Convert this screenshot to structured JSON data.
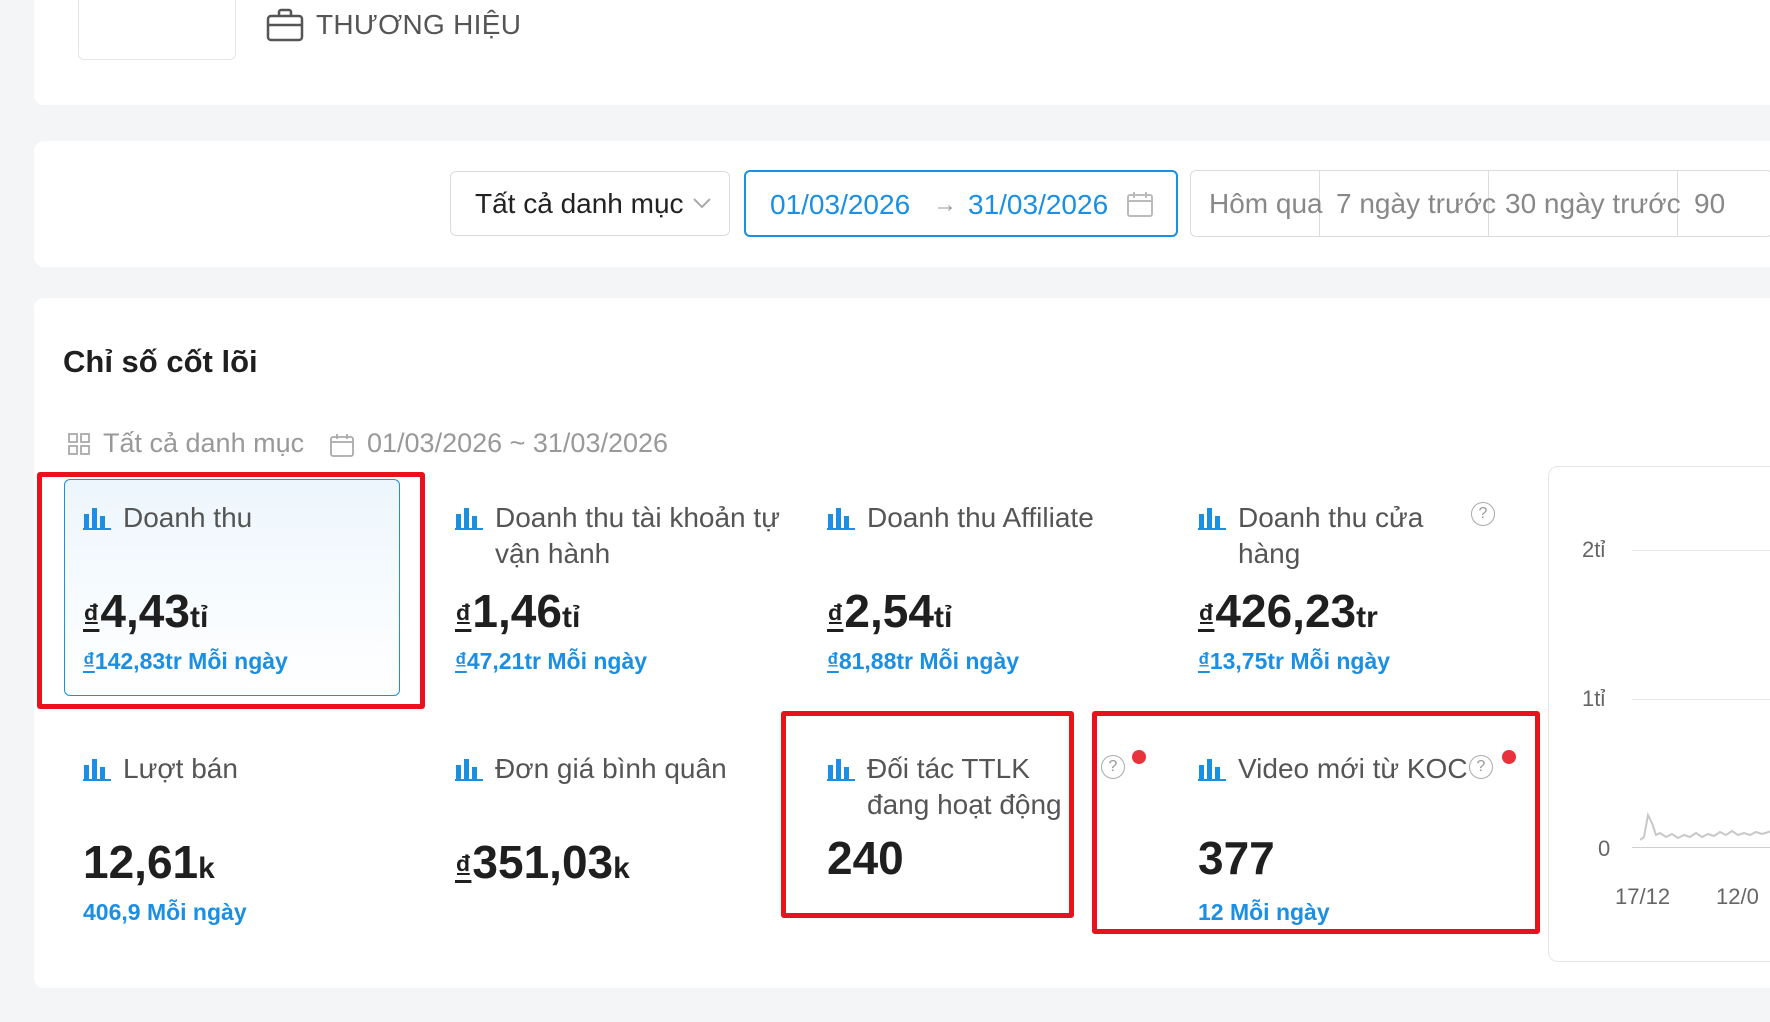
{
  "brand": {
    "label": "THƯƠNG HIỆU"
  },
  "filters": {
    "category": "Tất cả danh mục",
    "date_start": "01/03/2026",
    "date_arrow": "→",
    "date_end": "31/03/2026",
    "quick_ranges": [
      "Hôm qua",
      "7 ngày trước",
      "30 ngày trước",
      "90"
    ]
  },
  "metrics": {
    "section_title": "Chỉ số cốt lõi",
    "meta_category": "Tất cả danh mục",
    "meta_range": "01/03/2026 ~ 31/03/2026",
    "tiles": [
      {
        "title": "Doanh thu",
        "currency": "₫",
        "value": "4,43",
        "unit": "tỉ",
        "daily_currency": "₫",
        "daily": "142,83tr Mỗi ngày"
      },
      {
        "title": "Doanh thu tài khoản tự vận hành",
        "currency": "₫",
        "value": "1,46",
        "unit": "tỉ",
        "daily_currency": "₫",
        "daily": "47,21tr Mỗi ngày"
      },
      {
        "title": "Doanh thu Affiliate",
        "currency": "₫",
        "value": "2,54",
        "unit": "tỉ",
        "daily_currency": "₫",
        "daily": "81,88tr Mỗi ngày"
      },
      {
        "title": "Doanh thu cửa hàng",
        "currency": "₫",
        "value": "426,23",
        "unit": "tr",
        "daily_currency": "₫",
        "daily": "13,75tr Mỗi ngày"
      },
      {
        "title": "Lượt bán",
        "value": "12,61",
        "unit": "k",
        "daily": "406,9 Mỗi ngày"
      },
      {
        "title": "Đơn giá bình quân",
        "currency": "₫",
        "value": "351,03",
        "unit": "k"
      },
      {
        "title": "Đối tác TTLK đang hoạt động",
        "value": "240"
      },
      {
        "title": "Video mới từ KOC",
        "value": "377",
        "daily": "12 Mỗi ngày"
      }
    ],
    "help_glyph": "?"
  },
  "chart": {
    "y_ticks": [
      "2tỉ",
      "1tỉ",
      "0"
    ],
    "x_ticks": [
      "17/12",
      "12/0"
    ]
  },
  "colors": {
    "accent": "#1a8fe3",
    "highlight": "#e8121c",
    "alert_dot": "#e8323c"
  }
}
